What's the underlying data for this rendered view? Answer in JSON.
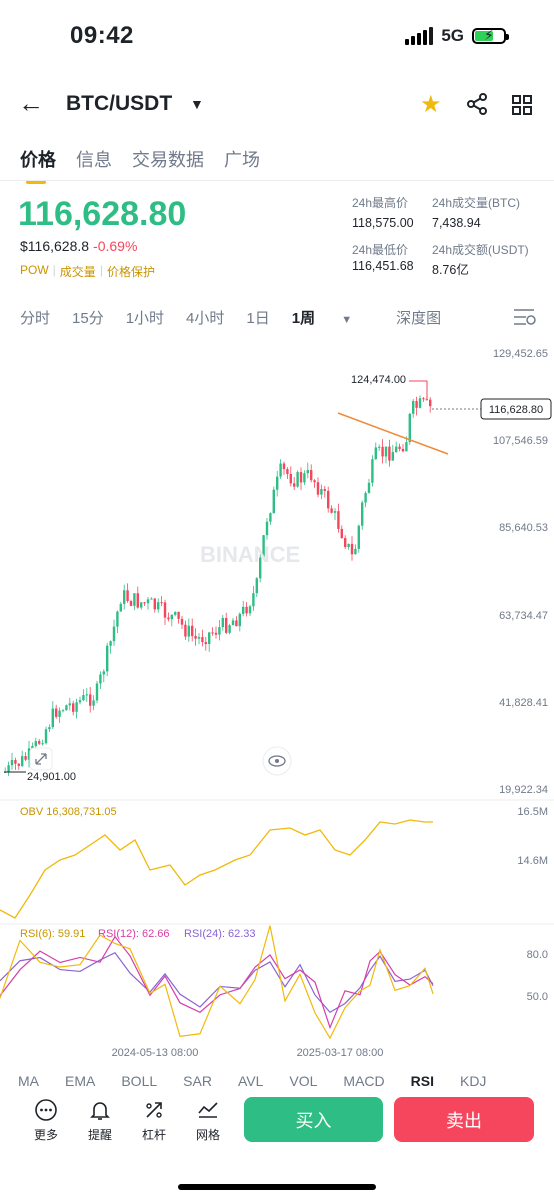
{
  "status": {
    "time": "09:42",
    "network": "5G"
  },
  "header": {
    "pair": "BTC/USDT"
  },
  "tabs": [
    "价格",
    "信息",
    "交易数据",
    "广场"
  ],
  "price": {
    "last": "116,628.80",
    "usd": "$116,628.8",
    "change": "-0.69%",
    "tags": [
      "POW",
      "成交量",
      "价格保护"
    ]
  },
  "stats": {
    "high_label": "24h最高价",
    "high": "118,575.00",
    "low_label": "24h最低价",
    "low": "116,451.68",
    "vol_btc_label": "24h成交量(BTC)",
    "vol_btc": "7,438.94",
    "vol_usdt_label": "24h成交额(USDT)",
    "vol_usdt": "8.76亿"
  },
  "periods": [
    "分时",
    "15分",
    "1小时",
    "4小时",
    "1日",
    "1周",
    "深度图"
  ],
  "chart_data": {
    "type": "candlestick",
    "y_ticks": [
      "129,452.65",
      "107,546.59",
      "85,640.53",
      "63,734.47",
      "41,828.41",
      "19,922.34"
    ],
    "max_label": "124,474.00",
    "min_label": "24,901.00",
    "last_label": "116,628.80",
    "watermark": "BINANCE",
    "x_labels": [
      "2024-05-13 08:00",
      "2025-03-17 08:00"
    ],
    "obv": {
      "label": "OBV 16,308,731.05",
      "ticks": [
        "16.5M",
        "14.6M"
      ]
    },
    "rsi": {
      "labels": [
        "RSI(6): 59.91",
        "RSI(12): 62.66",
        "RSI(24): 62.33"
      ],
      "ticks": [
        "80.0",
        "50.0"
      ]
    }
  },
  "indicators": [
    "MA",
    "EMA",
    "BOLL",
    "SAR",
    "AVL",
    "VOL",
    "MACD",
    "RSI",
    "KDJ"
  ],
  "actions": [
    "更多",
    "提醒",
    "杠杆",
    "网格"
  ],
  "buttons": {
    "buy": "买入",
    "sell": "卖出"
  },
  "colors": {
    "up": "#2ebd85",
    "down": "#f6465d",
    "accent": "#f0b90b",
    "obv": "#f0b90b",
    "rsi6": "#f0b90b",
    "rsi12": "#d63fa8",
    "rsi24": "#8a63d2"
  }
}
